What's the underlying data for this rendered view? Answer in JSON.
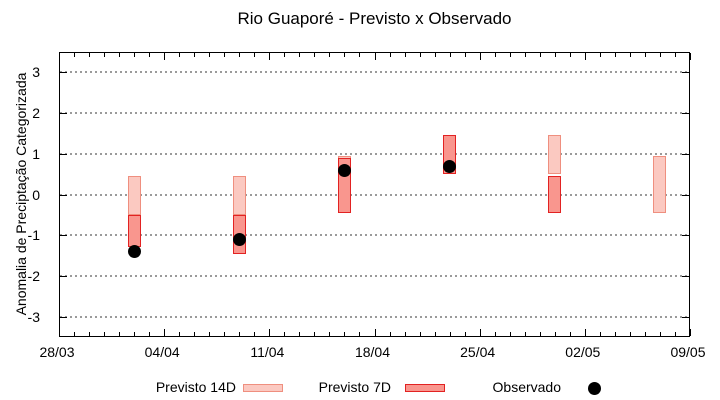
{
  "title": "Rio Guaporé - Previsto x Observado",
  "axes": {
    "y_label": "Anomalia de Preciptação Categorizada",
    "y_ticks": [
      "3",
      "2",
      "1",
      "0",
      "-1",
      "-2",
      "-3"
    ],
    "x_ticks": [
      "28/03",
      "04/04",
      "11/04",
      "18/04",
      "25/04",
      "02/05",
      "09/05"
    ]
  },
  "legend": [
    {
      "label": "Previsto 14D",
      "type": "box",
      "fill": "#fbc9c1",
      "border": "#ef8f7f"
    },
    {
      "label": "Previsto 7D",
      "type": "box",
      "fill": "#f9968e",
      "border": "#e22222"
    },
    {
      "label": "Observado",
      "type": "dot",
      "fill": "#000000"
    }
  ],
  "chart_data": {
    "type": "bar",
    "title": "Rio Guaporé - Previsto x Observado",
    "xlabel": "",
    "ylabel": "Anomalia de Preciptação Categorizada",
    "ylim": [
      -3.5,
      3.5
    ],
    "y_gridlines": [
      3,
      2,
      1,
      0,
      -1,
      -2,
      -3
    ],
    "grid": "horizontal dotted gray lines at integer values",
    "legend_position": "bottom center",
    "x_range_days": 42,
    "x_tick_interval_days": 7,
    "x_minor_tick_days": 1,
    "x_tick_labels": [
      "28/03",
      "04/04",
      "11/04",
      "18/04",
      "25/04",
      "02/05",
      "09/05"
    ],
    "categories": [
      "02/04",
      "09/04",
      "16/04",
      "23/04",
      "30/04",
      "07/05"
    ],
    "category_day_offsets": [
      5,
      12,
      19,
      26,
      33,
      40
    ],
    "series": [
      {
        "name": "Previsto 14D",
        "type": "box",
        "fill": "#fbc9c1",
        "border": "#ef8f7f",
        "ranges": [
          [
            0.45,
            -0.5
          ],
          [
            0.45,
            -0.5
          ],
          [
            0.95,
            -0.45
          ],
          null,
          [
            1.45,
            0.5
          ],
          [
            0.95,
            -0.45
          ]
        ]
      },
      {
        "name": "Previsto 7D",
        "type": "box",
        "fill": "#f9968e",
        "border": "#e22222",
        "ranges": [
          [
            -0.5,
            -1.3
          ],
          [
            -0.5,
            -1.45
          ],
          [
            0.9,
            -0.45
          ],
          [
            1.45,
            0.5
          ],
          [
            0.45,
            -0.45
          ],
          null
        ]
      },
      {
        "name": "Observado",
        "type": "scatter",
        "color": "#000000",
        "values": [
          -1.4,
          -1.1,
          0.6,
          0.7,
          null,
          null
        ]
      }
    ]
  }
}
